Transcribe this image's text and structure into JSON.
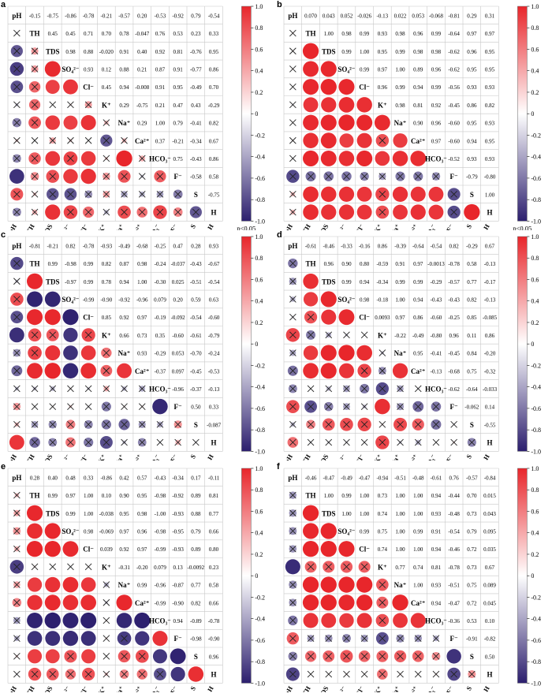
{
  "figure": {
    "footnote": "p<0.05",
    "colorbar_ticks": [
      "1.0",
      "0.8",
      "0.6",
      "0.4",
      "0.2",
      "0",
      "-0.2",
      "-0.4",
      "-0.6",
      "-0.8",
      "-1.0"
    ],
    "colors": {
      "positive": "#e8262b",
      "negative": "#2c1f6e",
      "neutral": "#ffffff",
      "grid": "#c8c8c8"
    }
  },
  "chart_data": [
    {
      "panel": "a",
      "type": "heatmap",
      "variables": [
        "pH",
        "TH",
        "TDS",
        "SO₄²⁻",
        "Cl⁻",
        "K⁺",
        "Na⁺",
        "Ca²⁺",
        "HCO₃⁻",
        "F⁻",
        "S",
        "H"
      ],
      "upper_values": [
        [
          "",
          "-0.15",
          "-0.75",
          "-0.86",
          "-0.78",
          "-0.21",
          "-0.57",
          "0.20",
          "-0.53",
          "-0.92",
          "0.79",
          "-0.54"
        ],
        [
          "",
          "",
          "0.45",
          "0.45",
          "0.71",
          "0.70",
          "0.78",
          "-0.047",
          "0.76",
          "0.53",
          "0.23",
          "0.33"
        ],
        [
          "",
          "",
          "",
          "0.98",
          "0.88",
          "-0.020",
          "0.91",
          "0.40",
          "0.92",
          "0.81",
          "-0.76",
          "0.95"
        ],
        [
          "",
          "",
          "",
          "",
          "0.93",
          "0.12",
          "0.88",
          "0.21",
          "0.87",
          "0.91",
          "-0.77",
          "0.86"
        ],
        [
          "",
          "",
          "",
          "",
          "",
          "0.45",
          "0.94",
          "-0.008",
          "0.91",
          "0.95",
          "-0.49",
          "0.70"
        ],
        [
          "",
          "",
          "",
          "",
          "",
          "",
          "0.29",
          "-0.75",
          "0.21",
          "0.47",
          "0.43",
          "-0.29"
        ],
        [
          "",
          "",
          "",
          "",
          "",
          "",
          "",
          "0.29",
          "1.00",
          "0.79",
          "-0.41",
          "0.82"
        ],
        [
          "",
          "",
          "",
          "",
          "",
          "",
          "",
          "",
          "0.37",
          "-0.21",
          "-0.34",
          "0.67"
        ],
        [
          "",
          "",
          "",
          "",
          "",
          "",
          "",
          "",
          "",
          "0.75",
          "-0.43",
          "0.86"
        ],
        [
          "",
          "",
          "",
          "",
          "",
          "",
          "",
          "",
          "",
          "",
          "-0.58",
          "0.58"
        ],
        [
          "",
          "",
          "",
          "",
          "",
          "",
          "",
          "",
          "",
          "",
          "",
          "-0.75"
        ]
      ],
      "footnote": "p<0.05"
    },
    {
      "panel": "b",
      "type": "heatmap",
      "variables": [
        "pH",
        "TH",
        "TDS",
        "SO₄²⁻",
        "Cl⁻",
        "K⁺",
        "Na⁺",
        "Ca²⁺",
        "HCO₃⁻",
        "F⁻",
        "S",
        "H"
      ],
      "upper_values": [
        [
          "",
          "0.070",
          "0.043",
          "0.052",
          "-0.026",
          "-0.13",
          "0.022",
          "0.053",
          "-0.068",
          "-0.81",
          "0.29",
          "0.31"
        ],
        [
          "",
          "",
          "1.00",
          "0.98",
          "0.99",
          "0.93",
          "0.98",
          "0.96",
          "0.99",
          "-0.64",
          "0.97",
          "0.97"
        ],
        [
          "",
          "",
          "",
          "0.99",
          "1.00",
          "0.95",
          "0.99",
          "0.98",
          "0.98",
          "-0.62",
          "0.96",
          "0.95"
        ],
        [
          "",
          "",
          "",
          "",
          "0.99",
          "0.97",
          "1.00",
          "0.89",
          "0.96",
          "-0.62",
          "0.95",
          "0.95"
        ],
        [
          "",
          "",
          "",
          "",
          "",
          "0.96",
          "0.99",
          "0.94",
          "0.99",
          "-0.56",
          "0.93",
          "0.93"
        ],
        [
          "",
          "",
          "",
          "",
          "",
          "",
          "0.98",
          "0.81",
          "0.92",
          "-0.45",
          "0.86",
          "0.82"
        ],
        [
          "",
          "",
          "",
          "",
          "",
          "",
          "",
          "0.90",
          "0.96",
          "-0.60",
          "0.95",
          "0.93"
        ],
        [
          "",
          "",
          "",
          "",
          "",
          "",
          "",
          "",
          "0.97",
          "-0.60",
          "0.94",
          "0.95"
        ],
        [
          "",
          "",
          "",
          "",
          "",
          "",
          "",
          "",
          "",
          "-0.52",
          "0.93",
          "0.93"
        ],
        [
          "",
          "",
          "",
          "",
          "",
          "",
          "",
          "",
          "",
          "",
          "-0.79",
          "-0.80"
        ],
        [
          "",
          "",
          "",
          "",
          "",
          "",
          "",
          "",
          "",
          "",
          "",
          "1.00"
        ]
      ],
      "footnote": "p<0.05"
    },
    {
      "panel": "c",
      "type": "heatmap",
      "variables": [
        "pH",
        "TH",
        "TDS",
        "SO₄²⁻",
        "Cl⁻",
        "K⁺",
        "Na⁺",
        "Ca²⁺",
        "HCO₃⁻",
        "F⁻",
        "S",
        "H"
      ],
      "upper_values": [
        [
          "",
          "-0.81",
          "-0.21",
          "0.82",
          "-0.78",
          "-0.93",
          "-0.49",
          "-0.68",
          "-0.25",
          "0.47",
          "0.28",
          "0.93"
        ],
        [
          "",
          "",
          "0.99",
          "-0.98",
          "0.99",
          "0.82",
          "0.87",
          "0.98",
          "-0.24",
          "-0.037",
          "-0.43",
          "-0.67"
        ],
        [
          "",
          "",
          "",
          "-0.97",
          "0.99",
          "0.78",
          "0.94",
          "1.00",
          "-0.30",
          "0.025",
          "-0.51",
          "-0.54"
        ],
        [
          "",
          "",
          "",
          "",
          "-0.99",
          "-0.90",
          "-0.92",
          "-0.96",
          "0.079",
          "0.20",
          "0.59",
          "0.63"
        ],
        [
          "",
          "",
          "",
          "",
          "",
          "0.85",
          "0.92",
          "0.97",
          "-0.19",
          "-0.092",
          "-0.54",
          "-0.60"
        ],
        [
          "",
          "",
          "",
          "",
          "",
          "",
          "0.66",
          "0.73",
          "0.35",
          "-0.60",
          "-0.61",
          "-0.79"
        ],
        [
          "",
          "",
          "",
          "",
          "",
          "",
          "",
          "0.93",
          "-0.29",
          "0.053",
          "-0.70",
          "-0.24"
        ],
        [
          "",
          "",
          "",
          "",
          "",
          "",
          "",
          "",
          "-0.37",
          "0.097",
          "-0.45",
          "-0.53"
        ],
        [
          "",
          "",
          "",
          "",
          "",
          "",
          "",
          "",
          "",
          "-0.96",
          "-0.37",
          "-0.13"
        ],
        [
          "",
          "",
          "",
          "",
          "",
          "",
          "",
          "",
          "",
          "",
          "0.50",
          "0.33"
        ],
        [
          "",
          "",
          "",
          "",
          "",
          "",
          "",
          "",
          "",
          "",
          "",
          "-0.087"
        ]
      ]
    },
    {
      "panel": "d",
      "type": "heatmap",
      "variables": [
        "pH",
        "TH",
        "TDS",
        "SO₄²⁻",
        "Cl⁻",
        "K⁺",
        "Na⁺",
        "Ca²⁺",
        "HCO₃⁻",
        "F⁻",
        "S",
        "H"
      ],
      "upper_values": [
        [
          "",
          "-0.61",
          "-0.46",
          "-0.33",
          "-0.16",
          "0.86",
          "-0.39",
          "-0.64",
          "-0.54",
          "0.82",
          "-0.29",
          "0.67"
        ],
        [
          "",
          "",
          "0.96",
          "0.90",
          "0.80",
          "-0.59",
          "0.91",
          "0.97",
          "-0.0013",
          "-0.78",
          "0.58",
          "-0.13"
        ],
        [
          "",
          "",
          "",
          "0.99",
          "0.94",
          "-0.34",
          "0.99",
          "0.99",
          "-0.29",
          "-0.57",
          "0.77",
          "-0.17"
        ],
        [
          "",
          "",
          "",
          "",
          "0.98",
          "-0.18",
          "1.00",
          "0.94",
          "-0.43",
          "-0.43",
          "0.82",
          "-0.13"
        ],
        [
          "",
          "",
          "",
          "",
          "",
          "0.0093",
          "0.97",
          "0.86",
          "-0.60",
          "-0.25",
          "0.85",
          "-0.085"
        ],
        [
          "",
          "",
          "",
          "",
          "",
          "",
          "-0.22",
          "-0.49",
          "-0.80",
          "0.96",
          "0.11",
          "0.86"
        ],
        [
          "",
          "",
          "",
          "",
          "",
          "",
          "",
          "0.95",
          "-0.41",
          "-0.45",
          "0.84",
          "-0.20"
        ],
        [
          "",
          "",
          "",
          "",
          "",
          "",
          "",
          "",
          "-0.13",
          "-0.68",
          "0.75",
          "-0.32"
        ],
        [
          "",
          "",
          "",
          "",
          "",
          "",
          "",
          "",
          "",
          "-0.62",
          "-0.64",
          "-0.033"
        ],
        [
          "",
          "",
          "",
          "",
          "",
          "",
          "",
          "",
          "",
          "",
          "-0.062",
          "0.14"
        ],
        [
          "",
          "",
          "",
          "",
          "",
          "",
          "",
          "",
          "",
          "",
          "",
          "-0.55"
        ]
      ]
    },
    {
      "panel": "e",
      "type": "heatmap",
      "variables": [
        "pH",
        "TH",
        "TDS",
        "SO₄²⁻",
        "Cl⁻",
        "K⁺",
        "Na⁺",
        "Ca²⁺",
        "HCO₃⁻",
        "F⁻",
        "S",
        "H"
      ],
      "upper_values": [
        [
          "",
          "0.28",
          "0.40",
          "0.48",
          "0.33",
          "-0.86",
          "0.42",
          "0.57",
          "-0.43",
          "-0.34",
          "0.17",
          "-0.11"
        ],
        [
          "",
          "",
          "0.99",
          "0.97",
          "1.00",
          "0.10",
          "0.90",
          "0.95",
          "-0.98",
          "-0.92",
          "0.89",
          "0.81"
        ],
        [
          "",
          "",
          "",
          "0.99",
          "1.00",
          "-0.038",
          "0.95",
          "0.98",
          "-1.00",
          "-0.93",
          "0.88",
          "0.77"
        ],
        [
          "",
          "",
          "",
          "",
          "0.98",
          "-0.069",
          "0.97",
          "0.96",
          "-0.98",
          "-0.95",
          "0.79",
          "0.66"
        ],
        [
          "",
          "",
          "",
          "",
          "",
          "0.039",
          "0.92",
          "0.97",
          "-0.99",
          "-0.93",
          "0.89",
          "0.80"
        ],
        [
          "",
          "",
          "",
          "",
          "",
          "",
          "-0.31",
          "-0.20",
          "0.079",
          "0.13",
          "-0.0092",
          "0.23"
        ],
        [
          "",
          "",
          "",
          "",
          "",
          "",
          "",
          "0.99",
          "-0.96",
          "-0.87",
          "0.77",
          "0.58"
        ],
        [
          "",
          "",
          "",
          "",
          "",
          "",
          "",
          "",
          "-0.99",
          "-0.90",
          "0.82",
          "0.66"
        ],
        [
          "",
          "",
          "",
          "",
          "",
          "",
          "",
          "",
          "",
          "0.94",
          "-0.89",
          "-0.78"
        ],
        [
          "",
          "",
          "",
          "",
          "",
          "",
          "",
          "",
          "",
          "",
          "-0.98",
          "-0.90"
        ],
        [
          "",
          "",
          "",
          "",
          "",
          "",
          "",
          "",
          "",
          "",
          "",
          "0.96"
        ]
      ]
    },
    {
      "panel": "f",
      "type": "heatmap",
      "variables": [
        "pH",
        "TH",
        "TDS",
        "SO₄²⁻",
        "Cl⁻",
        "K⁺",
        "Na⁺",
        "Ca²⁺",
        "HCO₃⁻",
        "F⁻",
        "S",
        "H"
      ],
      "upper_values": [
        [
          "",
          "-0.46",
          "-0.47",
          "-0.49",
          "-0.47",
          "-0.94",
          "-0.51",
          "-0.48",
          "-0.61",
          "0.76",
          "-0.57",
          "-0.84"
        ],
        [
          "",
          "",
          "1.00",
          "0.99",
          "1.00",
          "0.73",
          "1.00",
          "1.00",
          "0.94",
          "-0.44",
          "0.70",
          "0.015"
        ],
        [
          "",
          "",
          "",
          "1.00",
          "1.00",
          "0.74",
          "1.00",
          "1.00",
          "0.93",
          "-0.48",
          "0.73",
          "0.043"
        ],
        [
          "",
          "",
          "",
          "",
          "0.99",
          "0.75",
          "1.00",
          "0.99",
          "0.91",
          "-0.54",
          "0.79",
          "0.095"
        ],
        [
          "",
          "",
          "",
          "",
          "",
          "0.74",
          "1.00",
          "1.00",
          "0.94",
          "-0.46",
          "0.72",
          "0.035"
        ],
        [
          "",
          "",
          "",
          "",
          "",
          "",
          "0.77",
          "0.74",
          "0.81",
          "-0.78",
          "0.73",
          "0.67"
        ],
        [
          "",
          "",
          "",
          "",
          "",
          "",
          "",
          "1.00",
          "0.93",
          "-0.51",
          "0.75",
          "0.089"
        ],
        [
          "",
          "",
          "",
          "",
          "",
          "",
          "",
          "",
          "0.94",
          "-0.47",
          "0.72",
          "0.045"
        ],
        [
          "",
          "",
          "",
          "",
          "",
          "",
          "",
          "",
          "",
          "-0.36",
          "0.53",
          "0.10"
        ],
        [
          "",
          "",
          "",
          "",
          "",
          "",
          "",
          "",
          "",
          "",
          "-0.91",
          "-0.82"
        ],
        [
          "",
          "",
          "",
          "",
          "",
          "",
          "",
          "",
          "",
          "",
          "",
          "0.50"
        ]
      ]
    }
  ]
}
